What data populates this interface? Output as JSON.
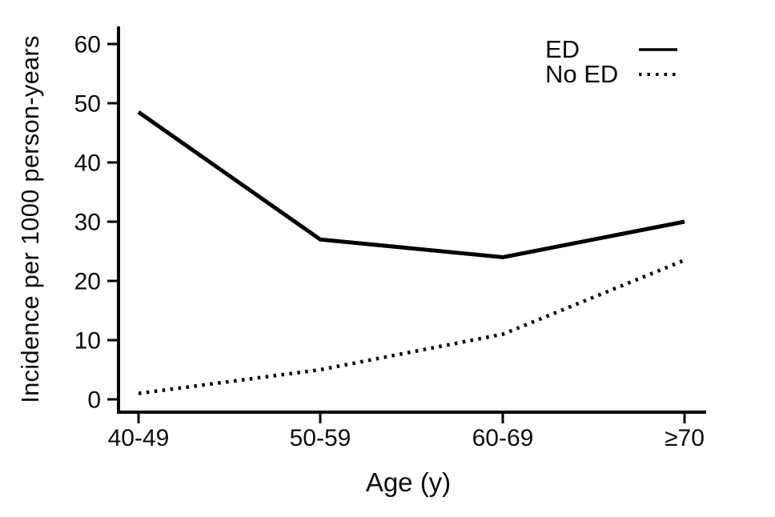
{
  "chart_data": {
    "type": "line",
    "categories": [
      "40-49",
      "50-59",
      "60-69",
      "≥70"
    ],
    "series": [
      {
        "name": "ED",
        "style": "solid",
        "color": "#000000",
        "values": [
          48.5,
          27,
          24,
          30
        ]
      },
      {
        "name": "No ED",
        "style": "dotted",
        "color": "#000000",
        "values": [
          1,
          5,
          11,
          23.5
        ]
      }
    ],
    "xlabel": "Age (y)",
    "ylabel": "Incidence per 1000 person-years",
    "yticks": [
      0,
      10,
      20,
      30,
      40,
      50,
      60
    ],
    "ylim": [
      0,
      63
    ],
    "grid": false,
    "legend_position": "top-right",
    "background": "#ffffff",
    "axis_color": "#000000"
  }
}
